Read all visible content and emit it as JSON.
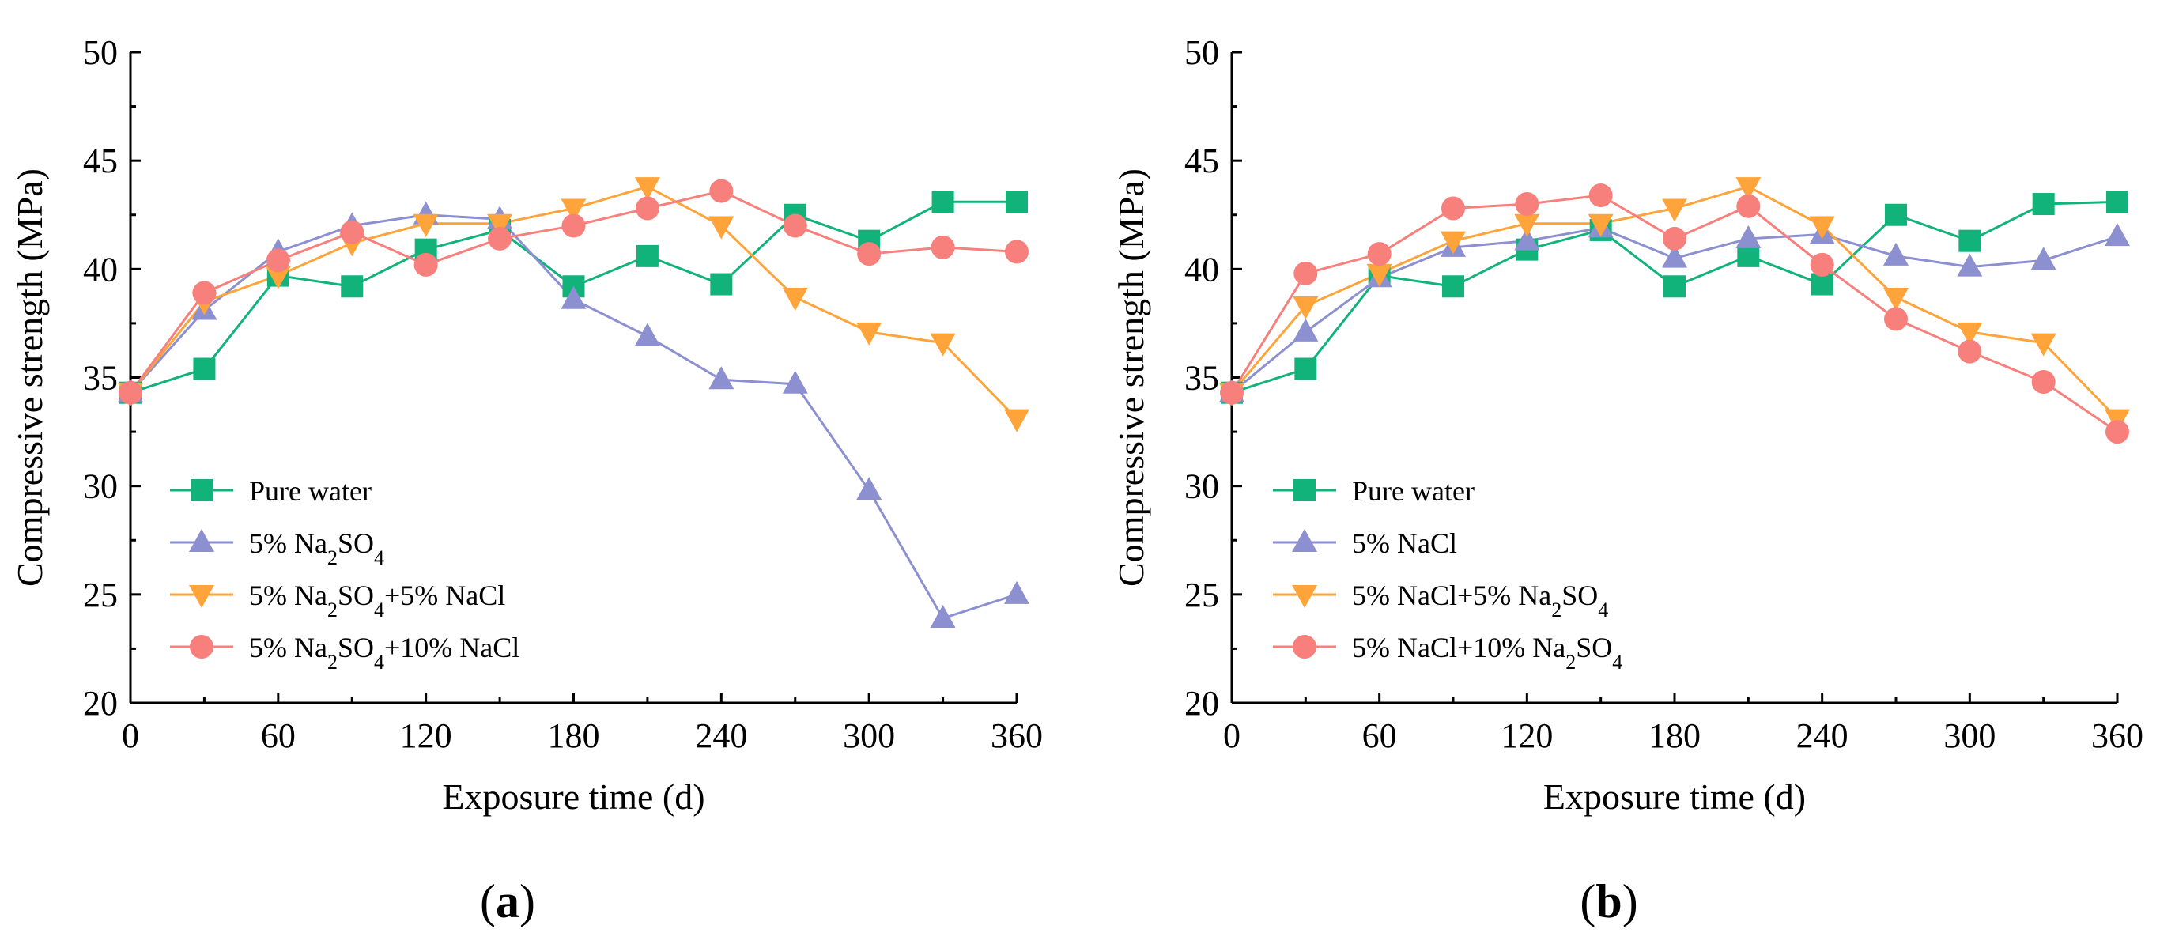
{
  "chart_data": [
    {
      "type": "line",
      "panel": "a",
      "panel_label_open": "(",
      "panel_label_letter": "a",
      "panel_label_close": ")",
      "xlabel": "Exposure time (d)",
      "ylabel": "Compressive strength (MPa)",
      "xlim": [
        0,
        360
      ],
      "ylim": [
        20,
        50
      ],
      "xticks": [
        "0",
        "60",
        "120",
        "180",
        "240",
        "300",
        "360"
      ],
      "yticks": [
        "20",
        "25",
        "30",
        "35",
        "40",
        "45",
        "50"
      ],
      "legend_position": "bottom-left",
      "x": [
        0,
        30,
        60,
        90,
        120,
        150,
        180,
        210,
        240,
        270,
        300,
        330,
        360
      ],
      "series": [
        {
          "name": "Pure water",
          "legend_parts": [
            {
              "t": "Pure water",
              "sub": false
            }
          ],
          "color": "#12b37a",
          "marker": "square",
          "values": [
            34.3,
            35.4,
            39.7,
            39.2,
            40.9,
            41.8,
            39.2,
            40.6,
            39.3,
            42.5,
            41.3,
            43.1,
            43.1
          ]
        },
        {
          "name": "5% Na2SO4",
          "legend_parts": [
            {
              "t": "5% Na",
              "sub": false
            },
            {
              "t": "2",
              "sub": true
            },
            {
              "t": "SO",
              "sub": false
            },
            {
              "t": "4",
              "sub": true
            }
          ],
          "color": "#8c8fd0",
          "marker": "triangle-up",
          "values": [
            34.3,
            38.1,
            40.8,
            42.0,
            42.5,
            42.3,
            38.6,
            36.9,
            34.9,
            34.7,
            29.8,
            23.9,
            25.0
          ]
        },
        {
          "name": "5% Na2SO4+5% NaCl",
          "legend_parts": [
            {
              "t": "5% Na",
              "sub": false
            },
            {
              "t": "2",
              "sub": true
            },
            {
              "t": "SO",
              "sub": false
            },
            {
              "t": "4",
              "sub": true
            },
            {
              "t": "+5% NaCl",
              "sub": false
            }
          ],
          "color": "#ffa43a",
          "marker": "triangle-down",
          "values": [
            34.3,
            38.5,
            39.7,
            41.2,
            42.1,
            42.1,
            42.8,
            43.8,
            42.0,
            38.7,
            37.1,
            36.6,
            33.1
          ]
        },
        {
          "name": "5% Na2SO4+10% NaCl",
          "legend_parts": [
            {
              "t": "5% Na",
              "sub": false
            },
            {
              "t": "2",
              "sub": true
            },
            {
              "t": "SO",
              "sub": false
            },
            {
              "t": "4",
              "sub": true
            },
            {
              "t": "+10% NaCl",
              "sub": false
            }
          ],
          "color": "#f7807d",
          "marker": "circle",
          "values": [
            34.3,
            38.9,
            40.4,
            41.7,
            40.2,
            41.4,
            42.0,
            42.8,
            43.6,
            42.0,
            40.7,
            41.0,
            40.8
          ]
        }
      ]
    },
    {
      "type": "line",
      "panel": "b",
      "panel_label_open": "(",
      "panel_label_letter": "b",
      "panel_label_close": ")",
      "xlabel": "Exposure time (d)",
      "ylabel": "Compressive strength (MPa)",
      "xlim": [
        0,
        360
      ],
      "ylim": [
        20,
        50
      ],
      "xticks": [
        "0",
        "60",
        "120",
        "180",
        "240",
        "300",
        "360"
      ],
      "yticks": [
        "20",
        "25",
        "30",
        "35",
        "40",
        "45",
        "50"
      ],
      "legend_position": "bottom-left",
      "x": [
        0,
        30,
        60,
        90,
        120,
        150,
        180,
        210,
        240,
        270,
        300,
        330,
        360
      ],
      "series": [
        {
          "name": "Pure water",
          "legend_parts": [
            {
              "t": "Pure water",
              "sub": false
            }
          ],
          "color": "#12b37a",
          "marker": "square",
          "values": [
            34.3,
            35.4,
            39.7,
            39.2,
            40.9,
            41.8,
            39.2,
            40.6,
            39.3,
            42.5,
            41.3,
            43.0,
            43.1
          ]
        },
        {
          "name": "5% NaCl",
          "legend_parts": [
            {
              "t": "5% NaCl",
              "sub": false
            }
          ],
          "color": "#8c8fd0",
          "marker": "triangle-up",
          "values": [
            34.3,
            37.1,
            39.6,
            41.0,
            41.3,
            41.9,
            40.5,
            41.4,
            41.6,
            40.6,
            40.1,
            40.4,
            41.5
          ]
        },
        {
          "name": "5% NaCl+5% Na2SO4",
          "legend_parts": [
            {
              "t": "5% NaCl+5% Na",
              "sub": false
            },
            {
              "t": "2",
              "sub": true
            },
            {
              "t": "SO",
              "sub": false
            },
            {
              "t": "4",
              "sub": true
            }
          ],
          "color": "#ffa43a",
          "marker": "triangle-down",
          "values": [
            34.3,
            38.3,
            39.8,
            41.3,
            42.1,
            42.1,
            42.8,
            43.8,
            42.0,
            38.7,
            37.1,
            36.6,
            33.1
          ]
        },
        {
          "name": "5% NaCl+10% Na2SO4",
          "legend_parts": [
            {
              "t": "5% NaCl+10% Na",
              "sub": false
            },
            {
              "t": "2",
              "sub": true
            },
            {
              "t": "SO",
              "sub": false
            },
            {
              "t": "4",
              "sub": true
            }
          ],
          "color": "#f7807d",
          "marker": "circle",
          "values": [
            34.3,
            39.8,
            40.7,
            42.8,
            43.0,
            43.4,
            41.4,
            42.9,
            40.2,
            37.7,
            36.2,
            34.8,
            32.5
          ]
        }
      ]
    }
  ]
}
